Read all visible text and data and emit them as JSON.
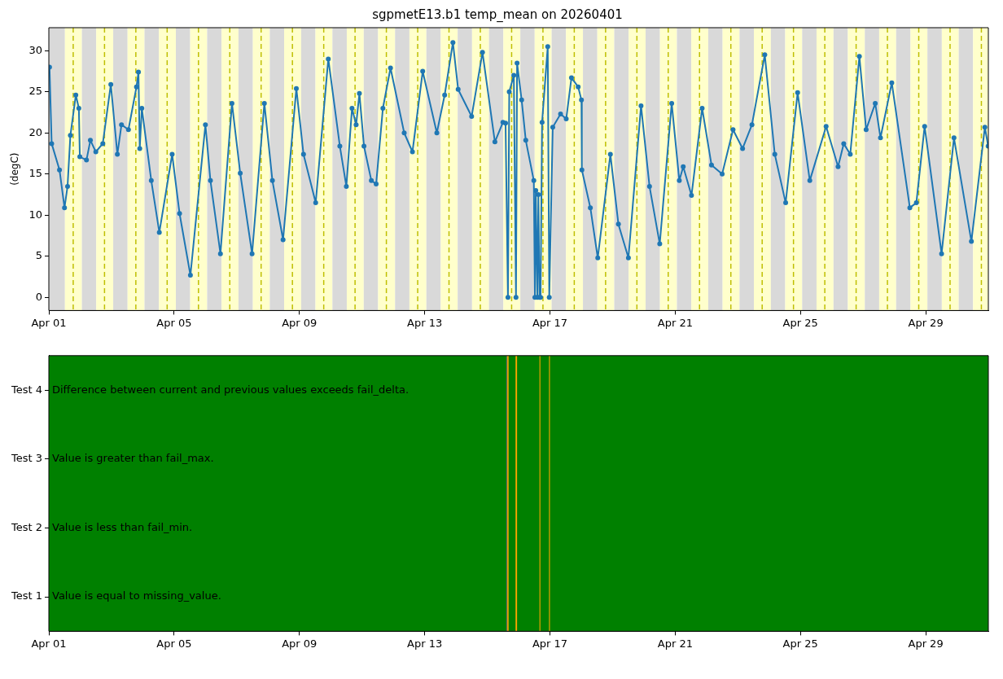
{
  "chart_data": [
    {
      "type": "line",
      "title": "sgpmetE13.b1 temp_mean on 20260401",
      "ylabel": "(degC)",
      "marker": "circle",
      "x": [
        "2026-04-01T00:30",
        "2026-04-01T02:10",
        "2026-04-01T08:10",
        "2026-04-01T12:00",
        "2026-04-01T14:20",
        "2026-04-01T16:30",
        "2026-04-01T20:40",
        "2026-04-01T23:00",
        "2026-04-01T23:45",
        "2026-04-02T04:50",
        "2026-04-02T07:50",
        "2026-04-02T12:00",
        "2026-04-02T17:20",
        "2026-04-02T23:30",
        "2026-04-03T04:30",
        "2026-04-03T07:40",
        "2026-04-03T13:00",
        "2026-04-03T19:10",
        "2026-04-03T20:40",
        "2026-04-03T21:40",
        "2026-04-03T23:15",
        "2026-04-04T06:30",
        "2026-04-04T12:40",
        "2026-04-04T22:30",
        "2026-04-05T04:10",
        "2026-04-05T12:30",
        "2026-04-06T00:00",
        "2026-04-06T03:50",
        "2026-04-06T11:30",
        "2026-04-06T20:20",
        "2026-04-07T02:40",
        "2026-04-07T11:45",
        "2026-04-07T21:10",
        "2026-04-08T03:20",
        "2026-04-08T11:30",
        "2026-04-08T21:40",
        "2026-04-09T03:10",
        "2026-04-09T12:30",
        "2026-04-09T22:10",
        "2026-04-10T07:00",
        "2026-04-10T12:00",
        "2026-04-10T16:20",
        "2026-04-10T19:30",
        "2026-04-10T22:00",
        "2026-04-11T01:30",
        "2026-04-11T07:10",
        "2026-04-11T10:50",
        "2026-04-11T16:00",
        "2026-04-11T21:50",
        "2026-04-12T08:20",
        "2026-04-12T14:40",
        "2026-04-12T22:30",
        "2026-04-13T09:20",
        "2026-04-13T15:20",
        "2026-04-13T21:40",
        "2026-04-14T01:40",
        "2026-04-14T12:00",
        "2026-04-14T20:20",
        "2026-04-15T05:50",
        "2026-04-15T12:00",
        "2026-04-15T14:00",
        "2026-04-15T15:50",
        "2026-04-15T16:50",
        "2026-04-15T20:20",
        "2026-04-15T22:00",
        "2026-04-15T22:50",
        "2026-04-16T02:20",
        "2026-04-16T05:30",
        "2026-04-16T11:40",
        "2026-04-16T12:30",
        "2026-04-16T13:10",
        "2026-04-16T14:20",
        "2026-04-16T15:10",
        "2026-04-16T16:00",
        "2026-04-16T16:50",
        "2026-04-16T18:00",
        "2026-04-16T22:20",
        "2026-04-16T23:30",
        "2026-04-17T02:10",
        "2026-04-17T08:10",
        "2026-04-17T12:30",
        "2026-04-17T16:30",
        "2026-04-17T21:40",
        "2026-04-18T00:10",
        "2026-04-18T00:30",
        "2026-04-18T07:00",
        "2026-04-18T12:40",
        "2026-04-18T22:20",
        "2026-04-19T04:30",
        "2026-04-19T12:10",
        "2026-04-19T21:50",
        "2026-04-20T04:20",
        "2026-04-20T12:10",
        "2026-04-20T21:20",
        "2026-04-21T03:10",
        "2026-04-21T06:10",
        "2026-04-21T12:30",
        "2026-04-21T20:40",
        "2026-04-22T03:50",
        "2026-04-22T12:00",
        "2026-04-22T20:20",
        "2026-04-23T03:40",
        "2026-04-23T10:50",
        "2026-04-23T20:40",
        "2026-04-24T04:20",
        "2026-04-24T12:40",
        "2026-04-24T21:50",
        "2026-04-25T07:10",
        "2026-04-25T19:40",
        "2026-04-26T04:50",
        "2026-04-26T09:10",
        "2026-04-26T14:10",
        "2026-04-26T21:10",
        "2026-04-27T02:20",
        "2026-04-27T09:20",
        "2026-04-27T13:20",
        "2026-04-27T22:00",
        "2026-04-28T11:50",
        "2026-04-28T16:50",
        "2026-04-28T23:10",
        "2026-04-29T12:10",
        "2026-04-29T21:40",
        "2026-04-30T11:00",
        "2026-04-30T21:20",
        "2026-04-30T23:50"
      ],
      "series": [
        {
          "color": "#1f77b4",
          "values": [
            28.0,
            18.7,
            15.5,
            10.9,
            13.5,
            19.7,
            24.6,
            23.0,
            17.1,
            16.7,
            19.1,
            17.7,
            18.7,
            25.9,
            17.4,
            21.0,
            20.4,
            25.6,
            27.4,
            18.1,
            23.0,
            14.2,
            7.9,
            17.4,
            10.2,
            2.7,
            21.0,
            14.2,
            5.3,
            23.6,
            15.1,
            5.3,
            23.6,
            14.2,
            7.0,
            25.4,
            17.4,
            11.5,
            29.0,
            18.4,
            13.5,
            23.0,
            21.0,
            24.8,
            18.4,
            14.2,
            13.8,
            23.0,
            27.9,
            20.0,
            17.7,
            27.5,
            20.0,
            24.6,
            31.0,
            25.3,
            22.0,
            29.8,
            18.9,
            21.3,
            21.2,
            0,
            25.0,
            27.0,
            0,
            28.5,
            24.0,
            19.1,
            14.2,
            0,
            13.0,
            0,
            12.5,
            0,
            0,
            21.3,
            30.5,
            0,
            20.7,
            22.3,
            21.7,
            26.7,
            25.6,
            24.0,
            15.5,
            10.9,
            4.8,
            17.4,
            8.9,
            4.8,
            23.3,
            13.5,
            6.5,
            23.6,
            14.2,
            15.9,
            12.4,
            23.0,
            16.1,
            15.0,
            20.4,
            18.1,
            21.0,
            29.5,
            17.4,
            11.5,
            24.9,
            14.2,
            20.8,
            15.9,
            18.7,
            17.4,
            29.3,
            20.4,
            23.6,
            19.4,
            26.1,
            10.9,
            11.5,
            20.8,
            5.3,
            19.4,
            6.8,
            20.7,
            18.4
          ]
        }
      ],
      "xlim": [
        "2026-04-01T00:00",
        "2026-05-01T00:00"
      ],
      "xticks": [
        {
          "value": "2026-04-01",
          "label": "Apr 01"
        },
        {
          "value": "2026-04-05",
          "label": "Apr 05"
        },
        {
          "value": "2026-04-09",
          "label": "Apr 09"
        },
        {
          "value": "2026-04-13",
          "label": "Apr 13"
        },
        {
          "value": "2026-04-17",
          "label": "Apr 17"
        },
        {
          "value": "2026-04-21",
          "label": "Apr 21"
        },
        {
          "value": "2026-04-25",
          "label": "Apr 25"
        },
        {
          "value": "2026-04-29",
          "label": "Apr 29"
        }
      ],
      "ylim": [
        -1.6,
        32.8
      ],
      "yticks": [
        0,
        5,
        10,
        15,
        20,
        25,
        30
      ],
      "bands": [
        {
          "axis": "x",
          "from": "2026-04-01T00:00",
          "to": "2026-04-01T12:20",
          "color": "#d9d9d9"
        },
        {
          "axis": "x",
          "from": "2026-04-01T12:20",
          "to": "2026-04-02T01:20",
          "color": "#ffffcc"
        },
        {
          "axis": "x",
          "from": "2026-04-02T01:20",
          "to": "2026-04-02T12:20",
          "color": "#d9d9d9"
        },
        {
          "axis": "x",
          "from": "2026-04-02T12:20",
          "to": "2026-04-03T01:20",
          "color": "#ffffcc"
        },
        {
          "axis": "x",
          "from": "2026-04-03T01:20",
          "to": "2026-04-03T12:20",
          "color": "#d9d9d9"
        },
        {
          "axis": "x",
          "from": "2026-04-03T12:20",
          "to": "2026-04-04T01:20",
          "color": "#ffffcc"
        },
        {
          "axis": "x",
          "from": "2026-04-04T01:20",
          "to": "2026-04-04T12:20",
          "color": "#d9d9d9"
        },
        {
          "axis": "x",
          "from": "2026-04-04T12:20",
          "to": "2026-04-05T01:20",
          "color": "#ffffcc"
        },
        {
          "axis": "x",
          "from": "2026-04-05T01:20",
          "to": "2026-04-05T12:20",
          "color": "#d9d9d9"
        },
        {
          "axis": "x",
          "from": "2026-04-05T12:20",
          "to": "2026-04-06T01:20",
          "color": "#ffffcc"
        },
        {
          "axis": "x",
          "from": "2026-04-06T01:20",
          "to": "2026-04-06T12:20",
          "color": "#d9d9d9"
        },
        {
          "axis": "x",
          "from": "2026-04-06T12:20",
          "to": "2026-04-07T01:20",
          "color": "#ffffcc"
        },
        {
          "axis": "x",
          "from": "2026-04-07T01:20",
          "to": "2026-04-07T12:20",
          "color": "#d9d9d9"
        },
        {
          "axis": "x",
          "from": "2026-04-07T12:20",
          "to": "2026-04-08T01:20",
          "color": "#ffffcc"
        },
        {
          "axis": "x",
          "from": "2026-04-08T01:20",
          "to": "2026-04-08T12:20",
          "color": "#d9d9d9"
        },
        {
          "axis": "x",
          "from": "2026-04-08T12:20",
          "to": "2026-04-09T01:20",
          "color": "#ffffcc"
        },
        {
          "axis": "x",
          "from": "2026-04-09T01:20",
          "to": "2026-04-09T12:20",
          "color": "#d9d9d9"
        },
        {
          "axis": "x",
          "from": "2026-04-09T12:20",
          "to": "2026-04-10T01:20",
          "color": "#ffffcc"
        },
        {
          "axis": "x",
          "from": "2026-04-10T01:20",
          "to": "2026-04-10T12:20",
          "color": "#d9d9d9"
        },
        {
          "axis": "x",
          "from": "2026-04-10T12:20",
          "to": "2026-04-11T01:20",
          "color": "#ffffcc"
        },
        {
          "axis": "x",
          "from": "2026-04-11T01:20",
          "to": "2026-04-11T12:20",
          "color": "#d9d9d9"
        },
        {
          "axis": "x",
          "from": "2026-04-11T12:20",
          "to": "2026-04-12T01:20",
          "color": "#ffffcc"
        },
        {
          "axis": "x",
          "from": "2026-04-12T01:20",
          "to": "2026-04-12T12:20",
          "color": "#d9d9d9"
        },
        {
          "axis": "x",
          "from": "2026-04-12T12:20",
          "to": "2026-04-13T01:20",
          "color": "#ffffcc"
        },
        {
          "axis": "x",
          "from": "2026-04-13T01:20",
          "to": "2026-04-13T12:20",
          "color": "#d9d9d9"
        },
        {
          "axis": "x",
          "from": "2026-04-13T12:20",
          "to": "2026-04-14T01:20",
          "color": "#ffffcc"
        },
        {
          "axis": "x",
          "from": "2026-04-14T01:20",
          "to": "2026-04-14T12:20",
          "color": "#d9d9d9"
        },
        {
          "axis": "x",
          "from": "2026-04-14T12:20",
          "to": "2026-04-15T01:20",
          "color": "#ffffcc"
        },
        {
          "axis": "x",
          "from": "2026-04-15T01:20",
          "to": "2026-04-15T12:20",
          "color": "#d9d9d9"
        },
        {
          "axis": "x",
          "from": "2026-04-15T12:20",
          "to": "2026-04-16T01:20",
          "color": "#ffffcc"
        },
        {
          "axis": "x",
          "from": "2026-04-16T01:20",
          "to": "2026-04-16T12:20",
          "color": "#d9d9d9"
        },
        {
          "axis": "x",
          "from": "2026-04-16T12:20",
          "to": "2026-04-17T01:20",
          "color": "#ffffcc"
        },
        {
          "axis": "x",
          "from": "2026-04-17T01:20",
          "to": "2026-04-17T12:20",
          "color": "#d9d9d9"
        },
        {
          "axis": "x",
          "from": "2026-04-17T12:20",
          "to": "2026-04-18T01:20",
          "color": "#ffffcc"
        },
        {
          "axis": "x",
          "from": "2026-04-18T01:20",
          "to": "2026-04-18T12:20",
          "color": "#d9d9d9"
        },
        {
          "axis": "x",
          "from": "2026-04-18T12:20",
          "to": "2026-04-19T01:20",
          "color": "#ffffcc"
        },
        {
          "axis": "x",
          "from": "2026-04-19T01:20",
          "to": "2026-04-19T12:20",
          "color": "#d9d9d9"
        },
        {
          "axis": "x",
          "from": "2026-04-19T12:20",
          "to": "2026-04-20T01:20",
          "color": "#ffffcc"
        },
        {
          "axis": "x",
          "from": "2026-04-20T01:20",
          "to": "2026-04-20T12:20",
          "color": "#d9d9d9"
        },
        {
          "axis": "x",
          "from": "2026-04-20T12:20",
          "to": "2026-04-21T01:20",
          "color": "#ffffcc"
        },
        {
          "axis": "x",
          "from": "2026-04-21T01:20",
          "to": "2026-04-21T12:20",
          "color": "#d9d9d9"
        },
        {
          "axis": "x",
          "from": "2026-04-21T12:20",
          "to": "2026-04-22T01:20",
          "color": "#ffffcc"
        },
        {
          "axis": "x",
          "from": "2026-04-22T01:20",
          "to": "2026-04-22T12:20",
          "color": "#d9d9d9"
        },
        {
          "axis": "x",
          "from": "2026-04-22T12:20",
          "to": "2026-04-23T01:20",
          "color": "#ffffcc"
        },
        {
          "axis": "x",
          "from": "2026-04-23T01:20",
          "to": "2026-04-23T12:20",
          "color": "#d9d9d9"
        },
        {
          "axis": "x",
          "from": "2026-04-23T12:20",
          "to": "2026-04-24T01:20",
          "color": "#ffffcc"
        },
        {
          "axis": "x",
          "from": "2026-04-24T01:20",
          "to": "2026-04-24T12:20",
          "color": "#d9d9d9"
        },
        {
          "axis": "x",
          "from": "2026-04-24T12:20",
          "to": "2026-04-25T01:20",
          "color": "#ffffcc"
        },
        {
          "axis": "x",
          "from": "2026-04-25T01:20",
          "to": "2026-04-25T12:20",
          "color": "#d9d9d9"
        },
        {
          "axis": "x",
          "from": "2026-04-25T12:20",
          "to": "2026-04-26T01:20",
          "color": "#ffffcc"
        },
        {
          "axis": "x",
          "from": "2026-04-26T01:20",
          "to": "2026-04-26T12:20",
          "color": "#d9d9d9"
        },
        {
          "axis": "x",
          "from": "2026-04-26T12:20",
          "to": "2026-04-27T01:20",
          "color": "#ffffcc"
        },
        {
          "axis": "x",
          "from": "2026-04-27T01:20",
          "to": "2026-04-27T12:20",
          "color": "#d9d9d9"
        },
        {
          "axis": "x",
          "from": "2026-04-27T12:20",
          "to": "2026-04-28T01:20",
          "color": "#ffffcc"
        },
        {
          "axis": "x",
          "from": "2026-04-28T01:20",
          "to": "2026-04-28T12:20",
          "color": "#d9d9d9"
        },
        {
          "axis": "x",
          "from": "2026-04-28T12:20",
          "to": "2026-04-29T01:20",
          "color": "#ffffcc"
        },
        {
          "axis": "x",
          "from": "2026-04-29T01:20",
          "to": "2026-04-29T12:20",
          "color": "#d9d9d9"
        },
        {
          "axis": "x",
          "from": "2026-04-29T12:20",
          "to": "2026-04-30T01:20",
          "color": "#ffffcc"
        },
        {
          "axis": "x",
          "from": "2026-04-30T01:20",
          "to": "2026-04-30T12:20",
          "color": "#d9d9d9"
        },
        {
          "axis": "x",
          "from": "2026-04-30T12:20",
          "to": "2026-05-01T00:00",
          "color": "#ffffcc"
        }
      ],
      "ref_lines": [
        {
          "axis": "x",
          "value": "2026-04-01T18:40",
          "color": "#bfbf00",
          "line_style": "dashed"
        },
        {
          "axis": "x",
          "value": "2026-04-02T18:40",
          "color": "#bfbf00",
          "line_style": "dashed"
        },
        {
          "axis": "x",
          "value": "2026-04-03T18:40",
          "color": "#bfbf00",
          "line_style": "dashed"
        },
        {
          "axis": "x",
          "value": "2026-04-04T18:40",
          "color": "#bfbf00",
          "line_style": "dashed"
        },
        {
          "axis": "x",
          "value": "2026-04-05T18:40",
          "color": "#bfbf00",
          "line_style": "dashed"
        },
        {
          "axis": "x",
          "value": "2026-04-06T18:40",
          "color": "#bfbf00",
          "line_style": "dashed"
        },
        {
          "axis": "x",
          "value": "2026-04-07T18:40",
          "color": "#bfbf00",
          "line_style": "dashed"
        },
        {
          "axis": "x",
          "value": "2026-04-08T18:40",
          "color": "#bfbf00",
          "line_style": "dashed"
        },
        {
          "axis": "x",
          "value": "2026-04-09T18:40",
          "color": "#bfbf00",
          "line_style": "dashed"
        },
        {
          "axis": "x",
          "value": "2026-04-10T18:40",
          "color": "#bfbf00",
          "line_style": "dashed"
        },
        {
          "axis": "x",
          "value": "2026-04-11T18:40",
          "color": "#bfbf00",
          "line_style": "dashed"
        },
        {
          "axis": "x",
          "value": "2026-04-12T18:40",
          "color": "#bfbf00",
          "line_style": "dashed"
        },
        {
          "axis": "x",
          "value": "2026-04-13T18:40",
          "color": "#bfbf00",
          "line_style": "dashed"
        },
        {
          "axis": "x",
          "value": "2026-04-14T18:40",
          "color": "#bfbf00",
          "line_style": "dashed"
        },
        {
          "axis": "x",
          "value": "2026-04-15T18:40",
          "color": "#bfbf00",
          "line_style": "dashed"
        },
        {
          "axis": "x",
          "value": "2026-04-16T18:40",
          "color": "#bfbf00",
          "line_style": "dashed"
        },
        {
          "axis": "x",
          "value": "2026-04-17T18:40",
          "color": "#bfbf00",
          "line_style": "dashed"
        },
        {
          "axis": "x",
          "value": "2026-04-18T18:40",
          "color": "#bfbf00",
          "line_style": "dashed"
        },
        {
          "axis": "x",
          "value": "2026-04-19T18:40",
          "color": "#bfbf00",
          "line_style": "dashed"
        },
        {
          "axis": "x",
          "value": "2026-04-20T18:40",
          "color": "#bfbf00",
          "line_style": "dashed"
        },
        {
          "axis": "x",
          "value": "2026-04-21T18:40",
          "color": "#bfbf00",
          "line_style": "dashed"
        },
        {
          "axis": "x",
          "value": "2026-04-22T18:40",
          "color": "#bfbf00",
          "line_style": "dashed"
        },
        {
          "axis": "x",
          "value": "2026-04-23T18:40",
          "color": "#bfbf00",
          "line_style": "dashed"
        },
        {
          "axis": "x",
          "value": "2026-04-24T18:40",
          "color": "#bfbf00",
          "line_style": "dashed"
        },
        {
          "axis": "x",
          "value": "2026-04-25T18:40",
          "color": "#bfbf00",
          "line_style": "dashed"
        },
        {
          "axis": "x",
          "value": "2026-04-26T18:40",
          "color": "#bfbf00",
          "line_style": "dashed"
        },
        {
          "axis": "x",
          "value": "2026-04-27T18:40",
          "color": "#bfbf00",
          "line_style": "dashed"
        },
        {
          "axis": "x",
          "value": "2026-04-28T18:40",
          "color": "#bfbf00",
          "line_style": "dashed"
        },
        {
          "axis": "x",
          "value": "2026-04-29T18:40",
          "color": "#bfbf00",
          "line_style": "dashed"
        },
        {
          "axis": "x",
          "value": "2026-04-30T18:40",
          "color": "#bfbf00",
          "line_style": "dashed"
        }
      ]
    },
    {
      "type": "bar",
      "orientation": "horizontal",
      "categories": [
        "Test 4",
        "Test 3",
        "Test 2",
        "Test 1"
      ],
      "xlim": [
        "2026-04-01T00:00",
        "2026-05-01T00:00"
      ],
      "xticks": [
        {
          "value": "2026-04-01",
          "label": "Apr 01"
        },
        {
          "value": "2026-04-05",
          "label": "Apr 05"
        },
        {
          "value": "2026-04-09",
          "label": "Apr 09"
        },
        {
          "value": "2026-04-13",
          "label": "Apr 13"
        },
        {
          "value": "2026-04-17",
          "label": "Apr 17"
        },
        {
          "value": "2026-04-21",
          "label": "Apr 21"
        },
        {
          "value": "2026-04-25",
          "label": "Apr 25"
        },
        {
          "value": "2026-04-29",
          "label": "Apr 29"
        }
      ],
      "bands": [
        {
          "axis": "x",
          "from": "2026-04-01T00:00",
          "to": "2026-05-01T00:00",
          "color": "#008000"
        },
        {
          "axis": "x",
          "from": "2026-04-15T14:40",
          "to": "2026-04-15T15:20",
          "color": "#6b6b6b"
        },
        {
          "axis": "x",
          "from": "2026-04-15T15:20",
          "to": "2026-04-15T16:20",
          "color": "#ffa500"
        },
        {
          "axis": "x",
          "from": "2026-04-15T21:40",
          "to": "2026-04-15T22:50",
          "color": "#ffa500"
        },
        {
          "axis": "x",
          "from": "2026-04-16T16:00",
          "to": "2026-04-16T16:40",
          "color": "#ffa500"
        },
        {
          "axis": "x",
          "from": "2026-04-16T23:20",
          "to": "2026-04-17T00:00",
          "color": "#ffa500"
        }
      ],
      "annotations": [
        "Difference between current and previous values exceeds fail_delta.",
        "Value is greater than fail_max.",
        "Value is less than fail_min.",
        "Value is equal to missing_value."
      ]
    }
  ]
}
